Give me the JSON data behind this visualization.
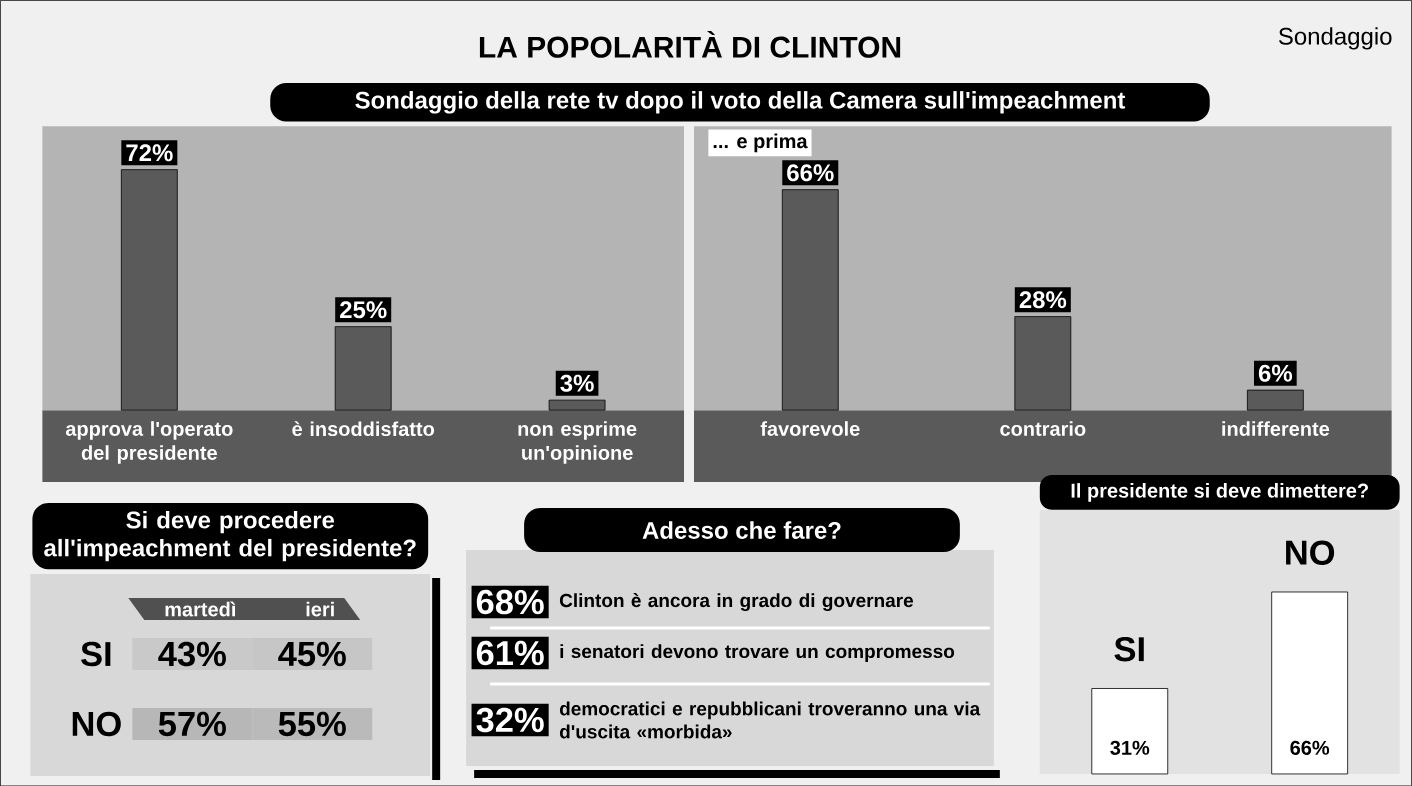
{
  "chart_data": [
    {
      "type": "bar",
      "title": "LA POPOLARITÀ DI CLINTON",
      "subtitle": "Sondaggio della rete tv dopo il voto della Camera sull'impeachment",
      "annotations": [
        "Sondaggio"
      ],
      "categories": [
        "approva l'operato del presidente",
        "è insoddisfatto",
        "non esprime un'opinione"
      ],
      "values": [
        72,
        25,
        3
      ],
      "value_labels": [
        "72%",
        "25%",
        "3%"
      ],
      "color": "#5a5a5a"
    },
    {
      "type": "bar",
      "title": "... e prima",
      "categories": [
        "favorevole",
        "contrario",
        "indifferente"
      ],
      "values": [
        66,
        28,
        6
      ],
      "value_labels": [
        "66%",
        "28%",
        "6%"
      ],
      "color": "#5a5a5a"
    },
    {
      "type": "heatmap",
      "title": "Si deve procedere all'impeachment del presidente?",
      "categories": [
        "martedì",
        "ieri"
      ],
      "y_categories": [
        "SI",
        "NO"
      ],
      "cells": [
        [
          43,
          45
        ],
        [
          57,
          55
        ]
      ],
      "cell_labels": [
        [
          "43%",
          "45%"
        ],
        [
          "57%",
          "55%"
        ]
      ]
    },
    {
      "type": "other",
      "title": "Adesso che fare?",
      "categories": [
        "Clinton è ancora in grado di governare",
        "i senatori devono trovare un compromesso",
        "democratici e repubblicani troveranno una via d'uscita «morbida»"
      ],
      "values": [
        68,
        61,
        32
      ],
      "value_labels": [
        "68%",
        "61%",
        "32%"
      ]
    },
    {
      "type": "bar",
      "title": "Il presidente si deve dimettere?",
      "categories": [
        "SI",
        "NO"
      ],
      "values": [
        31,
        66
      ],
      "value_labels": [
        "31%",
        "66%"
      ],
      "color": "#ffffff"
    }
  ]
}
